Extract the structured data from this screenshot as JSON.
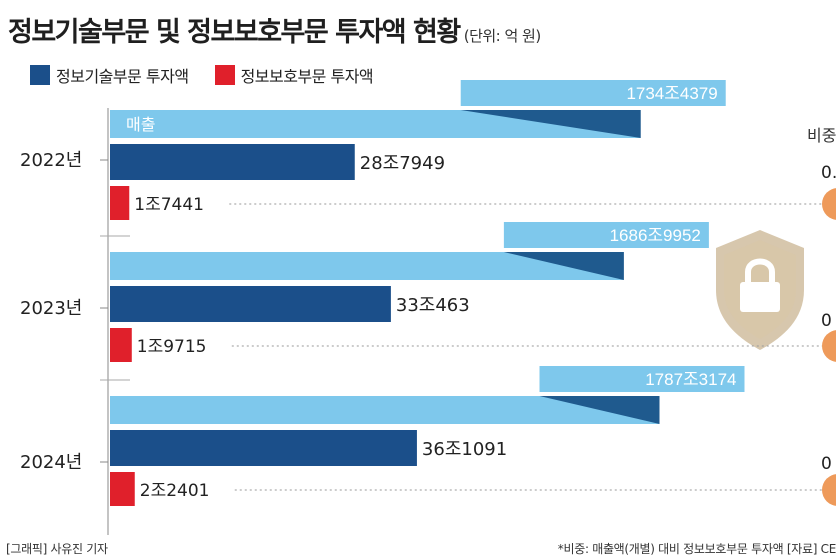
{
  "title": "정보기술부문 및 정보보호부문 투자액 현황",
  "unit": "(단위: 억 원)",
  "legend": [
    {
      "label": "정보기술부문 투자액",
      "color": "#1b4f8a"
    },
    {
      "label": "정보보호부문 투자액",
      "color": "#e0202b"
    }
  ],
  "sales_label": "매출",
  "ratio_header_partial": "비중",
  "ratio_partials": [
    "0.",
    "0",
    "0"
  ],
  "footer_left": "[그래픽] 사유진 기자",
  "footer_right": "*비중: 매출액(개별) 대비 정보보호부문 투자액  [자료] CE",
  "icon": "lock-shield-icon",
  "colors": {
    "sales_bar": "#7ec8ec",
    "sales_shadow": "#1f5a8e",
    "it_bar": "#1b4f8a",
    "sec_bar": "#e0202b",
    "ratio_dot": "#ee9a5a"
  },
  "chart_data": {
    "type": "bar",
    "categories": [
      "2022년",
      "2023년",
      "2024년"
    ],
    "series": [
      {
        "name": "매출",
        "values": [
          17344379,
          16869952,
          17873174
        ],
        "labels": [
          "1734조4379",
          "1686조9952",
          "1787조3174"
        ]
      },
      {
        "name": "정보기술부문 투자액",
        "values": [
          287949,
          330463,
          361091
        ],
        "labels": [
          "28조7949",
          "33조463",
          "36조1091"
        ]
      },
      {
        "name": "정보보호부문 투자액",
        "values": [
          17441,
          19715,
          22401
        ],
        "labels": [
          "1조7441",
          "1조9715",
          "2조2401"
        ]
      }
    ]
  }
}
